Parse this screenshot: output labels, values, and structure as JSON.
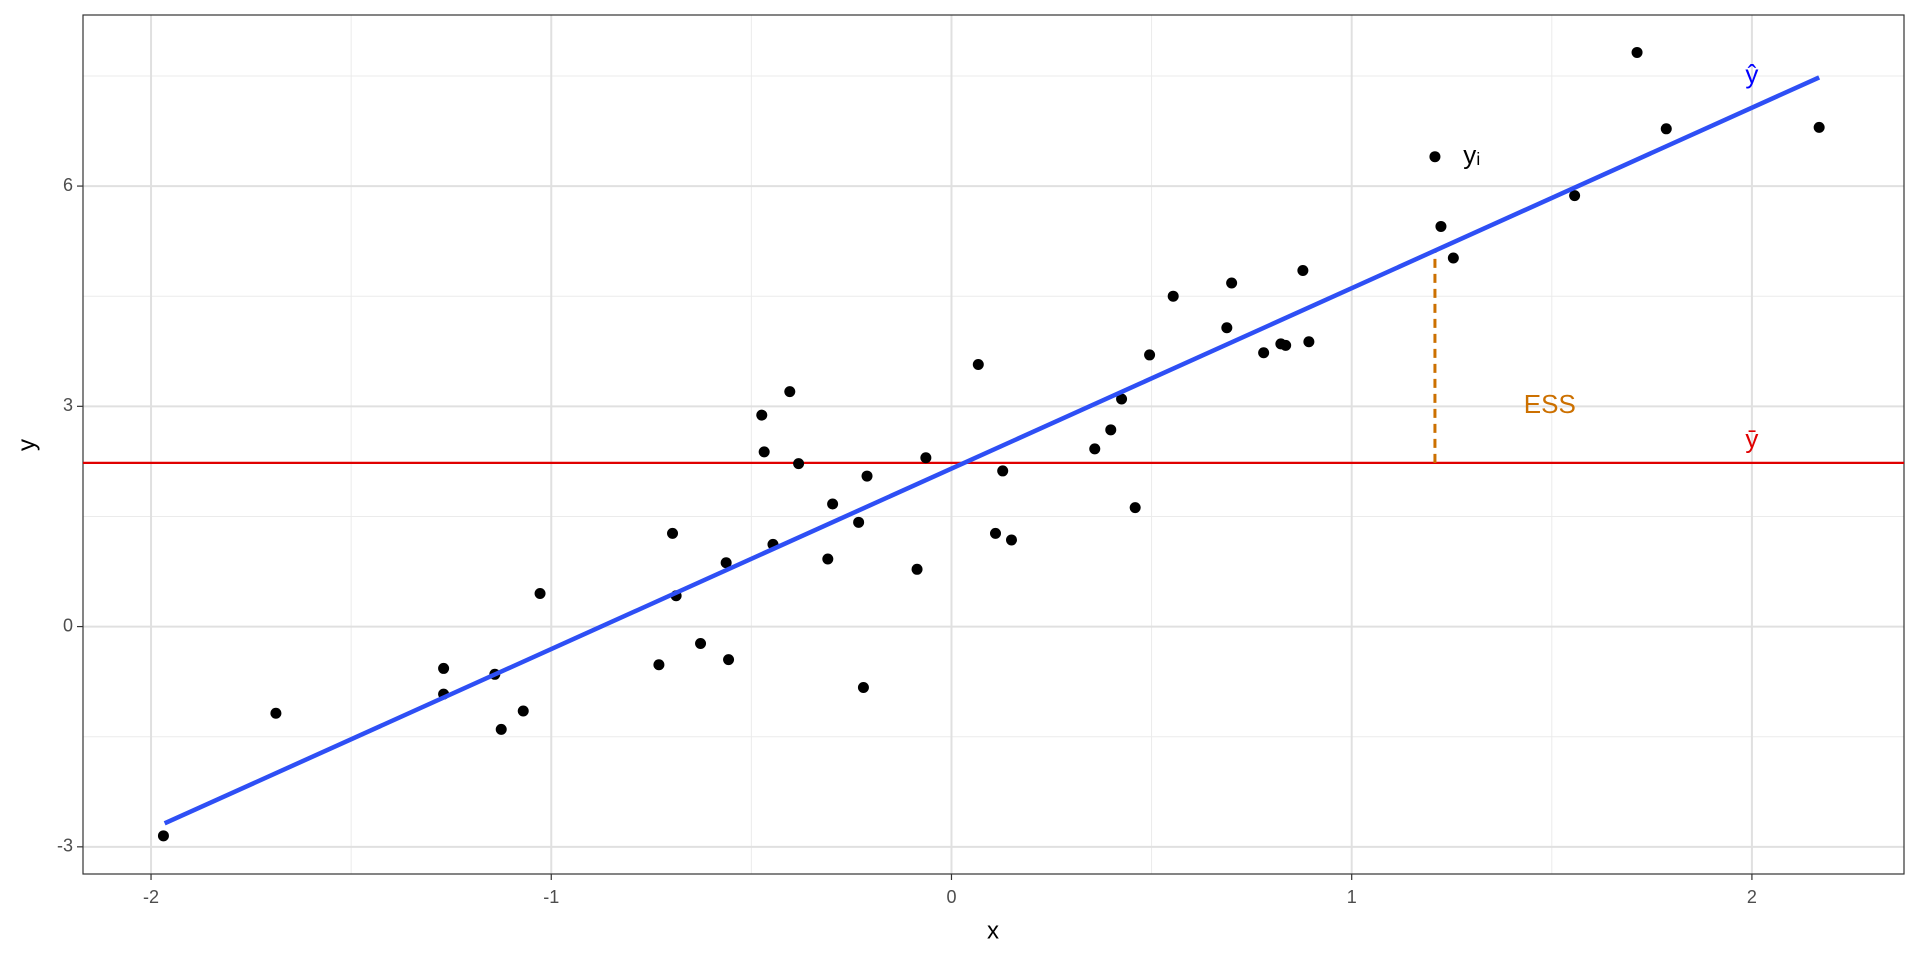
{
  "chart_data": {
    "type": "scatter",
    "x_label": "x",
    "y_label": "y",
    "xlim": [
      -2.17,
      2.38
    ],
    "ylim": [
      -3.37,
      8.33
    ],
    "xticks": [
      -2,
      -1,
      0,
      1,
      2
    ],
    "yticks": [
      -3,
      0,
      3,
      6
    ],
    "x_minor_ticks": [
      -1.5,
      -0.5,
      0.5,
      1.5
    ],
    "y_minor_ticks": [
      -1.5,
      1.5,
      4.5,
      7.5
    ],
    "grid": true,
    "series": [
      {
        "color": "#000000",
        "x": [
          -1.969,
          -1.688,
          -1.269,
          -1.269,
          -1.141,
          -1.125,
          -1.07,
          -1.028,
          -0.731,
          -0.697,
          -0.688,
          -0.627,
          -0.563,
          -0.557,
          -0.474,
          -0.468,
          -0.446,
          -0.404,
          -0.382,
          -0.309,
          -0.297,
          -0.232,
          -0.22,
          -0.211,
          -0.086,
          -0.064,
          0.067,
          0.11,
          0.128,
          0.15,
          0.358,
          0.398,
          0.425,
          0.459,
          0.495,
          0.554,
          0.688,
          0.7,
          0.78,
          0.823,
          0.835,
          0.878,
          0.893,
          1.208,
          1.223,
          1.254,
          1.557,
          1.713,
          1.786,
          2.168
        ],
        "y": [
          -2.85,
          -1.18,
          -0.57,
          -0.92,
          -0.65,
          -1.4,
          -1.15,
          0.45,
          -0.52,
          1.27,
          0.42,
          -0.23,
          0.87,
          -0.45,
          2.88,
          2.38,
          1.12,
          3.2,
          2.22,
          0.92,
          1.67,
          1.42,
          -0.83,
          2.05,
          0.78,
          2.3,
          3.57,
          1.27,
          2.12,
          1.18,
          2.42,
          2.68,
          3.1,
          1.62,
          3.7,
          4.5,
          4.07,
          4.68,
          3.73,
          3.85,
          3.83,
          4.85,
          3.88,
          6.4,
          5.45,
          5.02,
          5.87,
          7.82,
          6.78,
          6.8
        ]
      }
    ],
    "fit_line": {
      "color": "#2e4ff5",
      "x": [
        -1.966,
        2.168
      ],
      "y": [
        -2.68,
        7.48
      ]
    },
    "hline": {
      "color": "#e00000",
      "y": 2.23
    },
    "segment": {
      "color": "#cc7000",
      "x": 1.208,
      "y": [
        2.23,
        5.12
      ]
    },
    "annotations": [
      {
        "text": "ŷ",
        "x": 2.0,
        "y": 7.5,
        "color": "#0000ff"
      },
      {
        "text": "ȳ",
        "x": 2.0,
        "y": 2.53,
        "color": "#e00000"
      },
      {
        "text": "ESS",
        "x": 1.495,
        "y": 3.0,
        "color": "#cc7000"
      },
      {
        "text": "yᵢ",
        "x": 1.3,
        "y": 6.4,
        "color": "#000000"
      }
    ]
  }
}
